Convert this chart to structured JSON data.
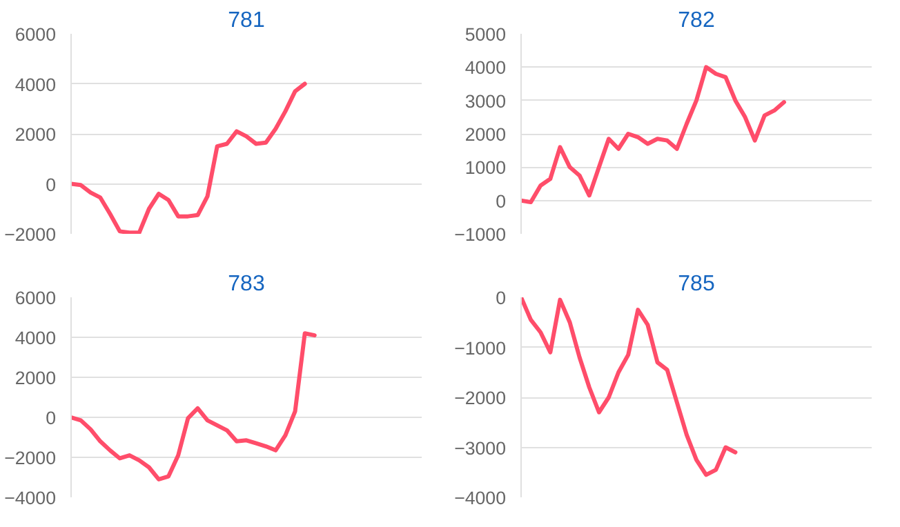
{
  "chart_data": [
    {
      "type": "line",
      "title": "781",
      "categories": [
        null,
        null,
        null,
        null,
        null,
        null,
        null,
        null,
        null,
        null,
        null,
        null,
        null,
        null,
        null,
        null,
        null,
        null,
        null,
        null,
        null,
        null,
        null,
        null,
        null,
        null,
        null,
        null,
        null,
        null,
        null,
        null,
        null,
        null,
        null,
        null,
        null
      ],
      "series": [
        {
          "color": "#ff4d6a",
          "values": [
            0,
            -50,
            -350,
            -550,
            -1200,
            -1900,
            -1950,
            -1950,
            -1000,
            -400,
            -650,
            -1300,
            -1300,
            -1250,
            -500,
            1500,
            1600,
            2100,
            1900,
            1600,
            1650,
            2200,
            2900,
            3700,
            4000,
            null,
            null,
            null,
            null,
            null,
            null,
            null,
            null,
            null,
            null,
            null,
            null
          ]
        }
      ],
      "ylim": [
        -2000,
        6000
      ],
      "yticks": [
        -2000,
        0,
        2000,
        4000,
        6000
      ],
      "grid": "y",
      "tick_labels": "y"
    },
    {
      "type": "line",
      "title": "782",
      "categories": [
        null,
        null,
        null,
        null,
        null,
        null,
        null,
        null,
        null,
        null,
        null,
        null,
        null,
        null,
        null,
        null,
        null,
        null,
        null,
        null,
        null,
        null,
        null,
        null,
        null,
        null,
        null,
        null,
        null,
        null,
        null,
        null,
        null,
        null,
        null,
        null,
        null
      ],
      "series": [
        {
          "color": "#ff4d6a",
          "values": [
            0,
            -50,
            450,
            650,
            1600,
            1000,
            750,
            150,
            1000,
            1850,
            1550,
            2000,
            1900,
            1700,
            1850,
            1800,
            1550,
            2300,
            3000,
            4000,
            3800,
            3700,
            3000,
            2500,
            1800,
            2550,
            2700,
            2950,
            null,
            null,
            null,
            null,
            null,
            null,
            null,
            null,
            null
          ]
        }
      ],
      "ylim": [
        -1000,
        5000
      ],
      "yticks": [
        -1000,
        0,
        1000,
        2000,
        3000,
        4000,
        5000
      ],
      "grid": "y",
      "tick_labels": "y"
    },
    {
      "type": "line",
      "title": "783",
      "categories": [
        null,
        null,
        null,
        null,
        null,
        null,
        null,
        null,
        null,
        null,
        null,
        null,
        null,
        null,
        null,
        null,
        null,
        null,
        null,
        null,
        null,
        null,
        null,
        null,
        null,
        null,
        null,
        null,
        null,
        null,
        null,
        null,
        null,
        null,
        null,
        null,
        null
      ],
      "series": [
        {
          "color": "#ff4d6a",
          "values": [
            0,
            -150,
            -600,
            -1200,
            -1650,
            -2050,
            -1900,
            -2150,
            -2500,
            -3100,
            -2950,
            -1900,
            -50,
            450,
            -150,
            -400,
            -650,
            -1200,
            -1150,
            -1300,
            -1450,
            -1650,
            -900,
            300,
            4200,
            4100,
            null,
            null,
            null,
            null,
            null,
            null,
            null,
            null,
            null,
            null,
            null
          ]
        }
      ],
      "ylim": [
        -4000,
        6000
      ],
      "yticks": [
        -4000,
        -2000,
        0,
        2000,
        4000,
        6000
      ],
      "grid": "y",
      "tick_labels": "y"
    },
    {
      "type": "line",
      "title": "785",
      "categories": [
        null,
        null,
        null,
        null,
        null,
        null,
        null,
        null,
        null,
        null,
        null,
        null,
        null,
        null,
        null,
        null,
        null,
        null,
        null,
        null,
        null,
        null,
        null,
        null,
        null,
        null,
        null,
        null,
        null,
        null,
        null,
        null,
        null,
        null,
        null,
        null,
        null
      ],
      "series": [
        {
          "color": "#ff4d6a",
          "values": [
            0,
            -450,
            -700,
            -1100,
            -50,
            -500,
            -1200,
            -1800,
            -2300,
            -2000,
            -1500,
            -1150,
            -250,
            -550,
            -1300,
            -1450,
            -2100,
            -2750,
            -3250,
            -3550,
            -3450,
            -3000,
            -3100,
            null,
            null,
            null,
            null,
            null,
            null,
            null,
            null,
            null,
            null,
            null,
            null,
            null,
            null
          ]
        }
      ],
      "ylim": [
        -4000,
        0
      ],
      "yticks": [
        -4000,
        -3000,
        -2000,
        -1000,
        0
      ],
      "grid": "y",
      "tick_labels": "y"
    }
  ]
}
